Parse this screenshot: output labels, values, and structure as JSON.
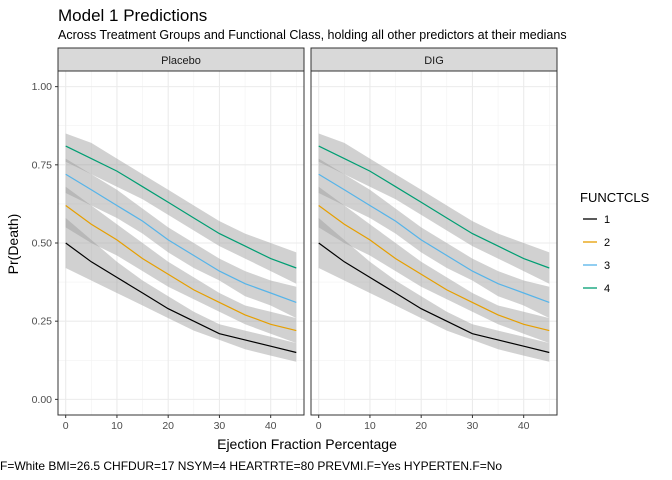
{
  "chart_data": {
    "type": "line",
    "title": "Model 1 Predictions",
    "subtitle": "Across Treatment Groups and Functional Class, holding all other predictors at their medians",
    "xlabel": "Ejection Fraction Percentage",
    "ylabel": "Pr(Death)",
    "caption": "F=White BMI=26.5 CHFDUR=17 NSYM=4 HEARTRTE=80 PREVMI.F=Yes HYPERTEN.F=No",
    "xlim": [
      -1.5,
      46.5
    ],
    "ylim": [
      -0.05,
      1.05
    ],
    "xticks": [
      0,
      10,
      20,
      30,
      40
    ],
    "yticks": [
      0.0,
      0.25,
      0.5,
      0.75,
      1.0
    ],
    "ytick_labels": [
      "0.00",
      "0.25",
      "0.50",
      "0.75",
      "1.00"
    ],
    "grid": true,
    "legend": {
      "title": "FUNCTCLS",
      "position": "right"
    },
    "x": [
      0,
      5,
      10,
      15,
      20,
      25,
      30,
      35,
      40,
      45
    ],
    "panels": [
      {
        "label": "Placebo",
        "series": [
          {
            "name": "1",
            "color": "#000000",
            "values": [
              0.5,
              0.44,
              0.39,
              0.34,
              0.29,
              0.25,
              0.21,
              0.19,
              0.17,
              0.15
            ],
            "lower": [
              0.42,
              0.38,
              0.34,
              0.3,
              0.26,
              0.22,
              0.19,
              0.16,
              0.14,
              0.12
            ],
            "upper": [
              0.58,
              0.51,
              0.44,
              0.38,
              0.33,
              0.28,
              0.24,
              0.22,
              0.2,
              0.18
            ]
          },
          {
            "name": "2",
            "color": "#E69F00",
            "values": [
              0.62,
              0.56,
              0.51,
              0.45,
              0.4,
              0.35,
              0.31,
              0.27,
              0.24,
              0.22
            ],
            "lower": [
              0.55,
              0.5,
              0.46,
              0.41,
              0.36,
              0.32,
              0.28,
              0.24,
              0.21,
              0.18
            ],
            "upper": [
              0.68,
              0.62,
              0.56,
              0.5,
              0.44,
              0.39,
              0.34,
              0.3,
              0.28,
              0.26
            ]
          },
          {
            "name": "3",
            "color": "#56B4E9",
            "values": [
              0.72,
              0.67,
              0.62,
              0.57,
              0.51,
              0.46,
              0.41,
              0.37,
              0.34,
              0.31
            ],
            "lower": [
              0.66,
              0.62,
              0.58,
              0.53,
              0.47,
              0.42,
              0.38,
              0.33,
              0.3,
              0.26
            ],
            "upper": [
              0.77,
              0.72,
              0.67,
              0.61,
              0.55,
              0.5,
              0.45,
              0.41,
              0.38,
              0.36
            ]
          },
          {
            "name": "4",
            "color": "#009E73",
            "values": [
              0.81,
              0.77,
              0.73,
              0.68,
              0.63,
              0.58,
              0.53,
              0.49,
              0.45,
              0.42
            ],
            "lower": [
              0.76,
              0.72,
              0.68,
              0.64,
              0.59,
              0.54,
              0.49,
              0.45,
              0.41,
              0.37
            ],
            "upper": [
              0.85,
              0.82,
              0.77,
              0.72,
              0.67,
              0.62,
              0.57,
              0.53,
              0.5,
              0.47
            ]
          }
        ]
      },
      {
        "label": "DIG",
        "series": [
          {
            "name": "1",
            "color": "#000000",
            "values": [
              0.5,
              0.44,
              0.39,
              0.34,
              0.29,
              0.25,
              0.21,
              0.19,
              0.17,
              0.15
            ],
            "lower": [
              0.42,
              0.38,
              0.34,
              0.3,
              0.26,
              0.22,
              0.19,
              0.16,
              0.14,
              0.12
            ],
            "upper": [
              0.58,
              0.51,
              0.44,
              0.38,
              0.33,
              0.28,
              0.24,
              0.22,
              0.2,
              0.18
            ]
          },
          {
            "name": "2",
            "color": "#E69F00",
            "values": [
              0.62,
              0.56,
              0.51,
              0.45,
              0.4,
              0.35,
              0.31,
              0.27,
              0.24,
              0.22
            ],
            "lower": [
              0.55,
              0.5,
              0.46,
              0.41,
              0.36,
              0.32,
              0.28,
              0.24,
              0.21,
              0.18
            ],
            "upper": [
              0.68,
              0.62,
              0.56,
              0.5,
              0.44,
              0.39,
              0.34,
              0.3,
              0.28,
              0.26
            ]
          },
          {
            "name": "3",
            "color": "#56B4E9",
            "values": [
              0.72,
              0.67,
              0.62,
              0.57,
              0.51,
              0.46,
              0.41,
              0.37,
              0.34,
              0.31
            ],
            "lower": [
              0.66,
              0.62,
              0.58,
              0.53,
              0.47,
              0.42,
              0.38,
              0.33,
              0.3,
              0.26
            ],
            "upper": [
              0.77,
              0.72,
              0.67,
              0.61,
              0.55,
              0.5,
              0.45,
              0.41,
              0.38,
              0.36
            ]
          },
          {
            "name": "4",
            "color": "#009E73",
            "values": [
              0.81,
              0.77,
              0.73,
              0.68,
              0.63,
              0.58,
              0.53,
              0.49,
              0.45,
              0.42
            ],
            "lower": [
              0.76,
              0.72,
              0.68,
              0.64,
              0.59,
              0.54,
              0.49,
              0.45,
              0.41,
              0.37
            ],
            "upper": [
              0.85,
              0.82,
              0.77,
              0.72,
              0.67,
              0.62,
              0.57,
              0.53,
              0.5,
              0.47
            ]
          }
        ]
      }
    ]
  }
}
